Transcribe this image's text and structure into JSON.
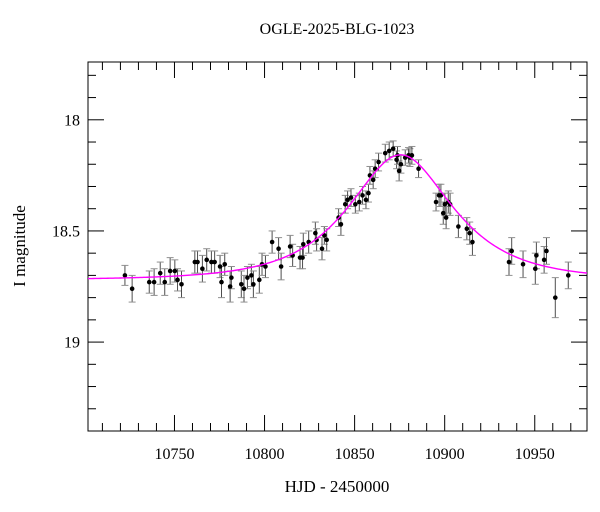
{
  "chart_data": {
    "type": "scatter",
    "title": "OGLE-2025-BLG-1023",
    "xlabel": "HJD - 2450000",
    "ylabel": "I magnitude",
    "xlim": [
      10702,
      10979
    ],
    "ylim": [
      17.74,
      19.4
    ],
    "y_inverted": true,
    "grid": false,
    "x_major_ticks": [
      10750,
      10800,
      10850,
      10900,
      10950
    ],
    "x_minor_step": 10,
    "y_major_ticks": [
      18,
      18.5,
      19
    ],
    "y_minor_step": 0.1,
    "colors": {
      "background": "#ffffff",
      "axis": "#000000",
      "point": "#000000",
      "errorbar": "#4d4d4d",
      "errorbar_cap": "#909090",
      "model_curve": "#ff00ff"
    },
    "model": {
      "type": "PSPL-microlensing",
      "t0": 10875.5,
      "tE": 42,
      "u0": 0.7,
      "baseline_mag": 18.72,
      "peak_mag": 18.16
    },
    "points": [
      [
        10722.5,
        18.7,
        0.045
      ],
      [
        10726.5,
        18.76,
        0.06
      ],
      [
        10736.0,
        18.73,
        0.05
      ],
      [
        10738.7,
        18.73,
        0.06
      ],
      [
        10742.1,
        18.69,
        0.05
      ],
      [
        10744.6,
        18.73,
        0.06
      ],
      [
        10747.6,
        18.68,
        0.06
      ],
      [
        10750.2,
        18.68,
        0.05
      ],
      [
        10751.7,
        18.72,
        0.05
      ],
      [
        10753.9,
        18.74,
        0.06
      ],
      [
        10761.3,
        18.64,
        0.05
      ],
      [
        10762.8,
        18.64,
        0.05
      ],
      [
        10765.5,
        18.67,
        0.06
      ],
      [
        10767.9,
        18.63,
        0.05
      ],
      [
        10770.5,
        18.64,
        0.05
      ],
      [
        10772.3,
        18.64,
        0.05
      ],
      [
        10775.3,
        18.66,
        0.05
      ],
      [
        10776.1,
        18.73,
        0.07
      ],
      [
        10777.9,
        18.65,
        0.05
      ],
      [
        10780.9,
        18.75,
        0.07
      ],
      [
        10781.6,
        18.71,
        0.05
      ],
      [
        10787.1,
        18.74,
        0.06
      ],
      [
        10788.6,
        18.76,
        0.06
      ],
      [
        10790.5,
        18.71,
        0.05
      ],
      [
        10792.7,
        18.7,
        0.05
      ],
      [
        10793.8,
        18.74,
        0.06
      ],
      [
        10797.1,
        18.72,
        0.06
      ],
      [
        10798.6,
        18.65,
        0.05
      ],
      [
        10800.5,
        18.66,
        0.05
      ],
      [
        10804.2,
        18.55,
        0.05
      ],
      [
        10807.8,
        18.58,
        0.05
      ],
      [
        10809.2,
        18.66,
        0.06
      ],
      [
        10814.2,
        18.57,
        0.05
      ],
      [
        10815.6,
        18.61,
        0.05
      ],
      [
        10819.7,
        18.62,
        0.05
      ],
      [
        10821.1,
        18.62,
        0.05
      ],
      [
        10821.5,
        18.56,
        0.05
      ],
      [
        10824.5,
        18.55,
        0.05
      ],
      [
        10828.2,
        18.51,
        0.05
      ],
      [
        10828.9,
        18.54,
        0.05
      ],
      [
        10831.9,
        18.58,
        0.05
      ],
      [
        10833.2,
        18.52,
        0.04
      ],
      [
        10834.5,
        18.54,
        0.05
      ],
      [
        10841.1,
        18.44,
        0.04
      ],
      [
        10842.4,
        18.47,
        0.05
      ],
      [
        10844.8,
        18.38,
        0.04
      ],
      [
        10846.1,
        18.36,
        0.04
      ],
      [
        10848.0,
        18.35,
        0.04
      ],
      [
        10850.4,
        18.38,
        0.04
      ],
      [
        10852.6,
        18.37,
        0.04
      ],
      [
        10854.4,
        18.34,
        0.04
      ],
      [
        10856.3,
        18.36,
        0.04
      ],
      [
        10857.7,
        18.33,
        0.04
      ],
      [
        10858.5,
        18.25,
        0.04
      ],
      [
        10860.3,
        18.27,
        0.04
      ],
      [
        10861.4,
        18.22,
        0.04
      ],
      [
        10863.3,
        18.19,
        0.04
      ],
      [
        10867.0,
        18.15,
        0.04
      ],
      [
        10869.2,
        18.14,
        0.04
      ],
      [
        10871.4,
        18.13,
        0.035
      ],
      [
        10873.3,
        18.18,
        0.04
      ],
      [
        10873.8,
        18.16,
        0.04
      ],
      [
        10874.7,
        18.23,
        0.045
      ],
      [
        10875.7,
        18.2,
        0.04
      ],
      [
        10878.1,
        18.17,
        0.035
      ],
      [
        10879.9,
        18.16,
        0.035
      ],
      [
        10880.7,
        18.17,
        0.04
      ],
      [
        10881.8,
        18.16,
        0.04
      ],
      [
        10885.5,
        18.22,
        0.04
      ],
      [
        10895.2,
        18.37,
        0.04
      ],
      [
        10896.9,
        18.34,
        0.05
      ],
      [
        10897.9,
        18.34,
        0.05
      ],
      [
        10899.2,
        18.42,
        0.05
      ],
      [
        10900.1,
        18.38,
        0.05
      ],
      [
        10900.8,
        18.44,
        0.05
      ],
      [
        10902.0,
        18.37,
        0.05
      ],
      [
        10903.0,
        18.38,
        0.05
      ],
      [
        10907.6,
        18.48,
        0.05
      ],
      [
        10912.3,
        18.49,
        0.05
      ],
      [
        10913.9,
        18.51,
        0.05
      ],
      [
        10915.4,
        18.55,
        0.06
      ],
      [
        10935.7,
        18.64,
        0.06
      ],
      [
        10937.2,
        18.59,
        0.06
      ],
      [
        10943.5,
        18.65,
        0.06
      ],
      [
        10950.3,
        18.67,
        0.07
      ],
      [
        10950.9,
        18.61,
        0.06
      ],
      [
        10955.2,
        18.63,
        0.06
      ],
      [
        10956.5,
        18.59,
        0.06
      ],
      [
        10961.4,
        18.8,
        0.09
      ],
      [
        10968.6,
        18.7,
        0.06
      ]
    ]
  }
}
